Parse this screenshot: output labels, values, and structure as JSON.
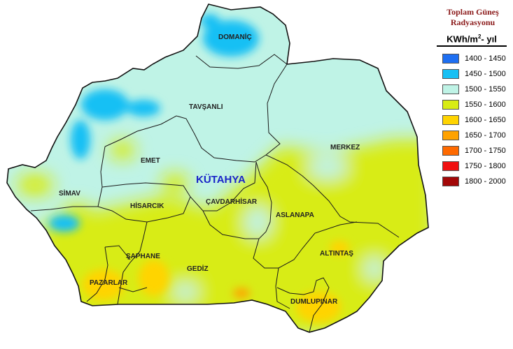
{
  "map": {
    "city_label": "KÜTAHYA",
    "districts": {
      "domanic": "DOMANİÇ",
      "tavsanli": "TAVŞANLI",
      "merkez": "MERKEZ",
      "emet": "EMET",
      "simav": "SİMAV",
      "hisarcik": "HİSARCIK",
      "cavdarhisar": "ÇAVDARHİSAR",
      "aslanapa": "ASLANAPA",
      "saphane": "ŞAPHANE",
      "gediz": "GEDİZ",
      "altintas": "ALTINTAŞ",
      "pazarlar": "PAZARLAR",
      "dumlupinar": "DUMLUPINAR"
    }
  },
  "legend": {
    "title_line1": "Toplam Güneş",
    "title_line2": "Radyasyonu",
    "unit_prefix": "KWh/m",
    "unit_sup": "2",
    "unit_suffix": "- yıl",
    "classes": [
      {
        "label": "1400 - 1450",
        "color": "#1e6ff2"
      },
      {
        "label": "1450 - 1500",
        "color": "#17c0f4"
      },
      {
        "label": "1500 - 1550",
        "color": "#bff3e6"
      },
      {
        "label": "1550 - 1600",
        "color": "#d8ec14"
      },
      {
        "label": "1600 - 1650",
        "color": "#ffd400"
      },
      {
        "label": "1650 - 1700",
        "color": "#ffa200"
      },
      {
        "label": "1700 - 1750",
        "color": "#ff6a00"
      },
      {
        "label": "1750 - 1800",
        "color": "#f01010"
      },
      {
        "label": "1800 - 2000",
        "color": "#a30808"
      }
    ]
  }
}
